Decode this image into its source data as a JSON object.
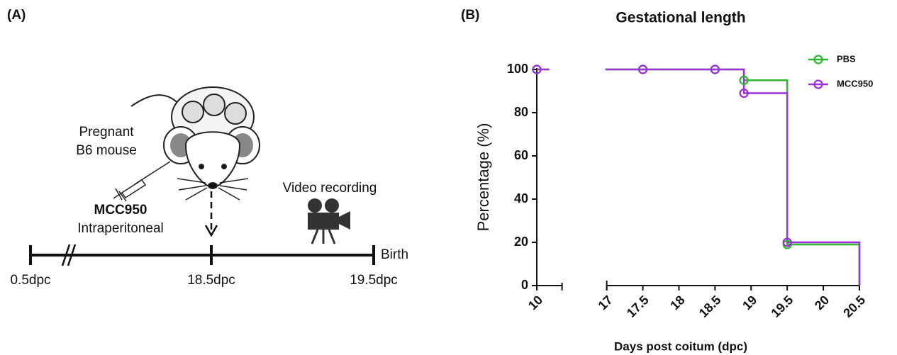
{
  "panel_a": {
    "label": "(A)",
    "mouse_label": [
      "Pregnant",
      "B6 mouse"
    ],
    "drug": "MCC950",
    "route": "Intraperitoneal",
    "recording": "Video recording",
    "end_label": "Birth",
    "timepoints": [
      "0.5dpc",
      "18.5dpc",
      "19.5dpc"
    ]
  },
  "chart_data": {
    "type": "line",
    "panel_label": "(B)",
    "title": "Gestational length",
    "x_label": "Days post coitum (dpc)",
    "y_label": "Percentage (%)",
    "x": [
      10,
      17.5,
      18.5,
      18.9,
      19.5
    ],
    "series": [
      {
        "name": "PBS",
        "color": "#2db52d",
        "values": [
          100,
          100,
          100,
          95,
          19
        ]
      },
      {
        "name": "MCC950",
        "color": "#9d2fd6",
        "values": [
          100,
          100,
          100,
          89,
          20
        ]
      }
    ],
    "xlim": [
      10,
      20.5
    ],
    "x_break": [
      10.35,
      17
    ],
    "xticks": [
      10,
      17,
      17.5,
      18,
      18.5,
      19,
      19.5,
      20,
      20.5
    ],
    "ylim": [
      0,
      100
    ],
    "yticks": [
      0,
      20,
      40,
      60,
      80,
      100
    ],
    "step": true,
    "legend": "top-right"
  }
}
